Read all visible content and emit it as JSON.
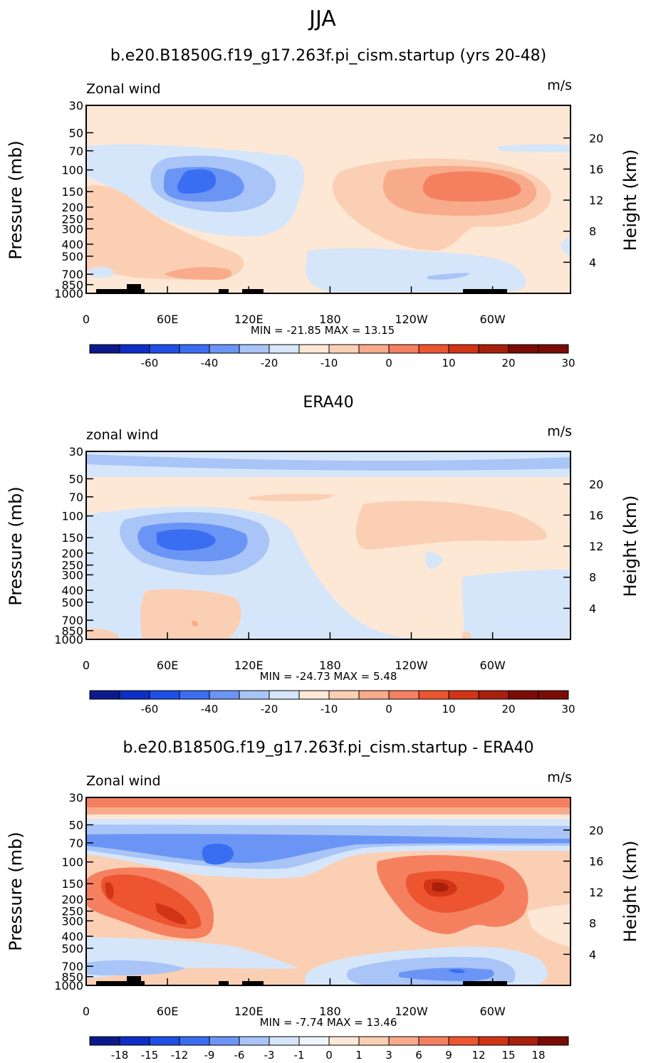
{
  "figure": {
    "title": "JJA"
  },
  "colors": {
    "neg": [
      "#0a1a8c",
      "#0c2fc8",
      "#1f4fe8",
      "#3a6ef2",
      "#6b95f5",
      "#a9c4f7",
      "#d6e6fa"
    ],
    "pos": [
      "#fde8d6",
      "#fbcfb3",
      "#f8ab8a",
      "#f58060",
      "#ec5530",
      "#d23416",
      "#a81f0c",
      "#7a0c05"
    ]
  },
  "chart_data": [
    {
      "type": "heatmap",
      "title": "b.e20.B1850G.f19_g17.263f.pi_cism.startup (yrs 20-48)",
      "left_label": "Zonal wind",
      "units": "m/s",
      "ylabel": "Pressure (mb)",
      "y2label": "Height (km)",
      "x_ticks": [
        "0",
        "60E",
        "120E",
        "180",
        "120W",
        "60W"
      ],
      "x_tick_values": [
        0,
        60,
        120,
        180,
        240,
        300
      ],
      "xlim": [
        0,
        357.5
      ],
      "y_ticks": [
        "30",
        "50",
        "70",
        "100",
        "150",
        "200",
        "250",
        "300",
        "400",
        "500",
        "700",
        "850",
        "1000"
      ],
      "y_tick_values": [
        30,
        50,
        70,
        100,
        150,
        200,
        250,
        300,
        400,
        500,
        700,
        850,
        1000
      ],
      "ylim": [
        1000,
        30
      ],
      "height_ticks": [
        "20",
        "16",
        "12",
        "8",
        "4"
      ],
      "height_values": [
        20,
        16,
        12,
        8,
        4
      ],
      "stats": "MIN = -21.85 MAX = 13.15",
      "colorbar_labels": [
        "-60",
        "-40",
        "-20",
        "-10",
        "0",
        "10",
        "20",
        "30"
      ],
      "colorbar_values": [
        -60,
        -40,
        -20,
        -10,
        0,
        10,
        20,
        30
      ],
      "features": [
        {
          "lon": 88,
          "p": 140,
          "value": -21.85,
          "shape": "jet core"
        },
        {
          "lon": 270,
          "p": 150,
          "value": 13.15,
          "shape": "jet core"
        }
      ]
    },
    {
      "type": "heatmap",
      "title": "ERA40",
      "left_label": "zonal wind",
      "units": "m/s",
      "ylabel": "Pressure (mb)",
      "y2label": "Height (km)",
      "x_ticks": [
        "0",
        "60E",
        "120E",
        "180",
        "120W",
        "60W"
      ],
      "x_tick_values": [
        0,
        60,
        120,
        180,
        240,
        300
      ],
      "xlim": [
        0,
        357.5
      ],
      "y_ticks": [
        "30",
        "50",
        "70",
        "100",
        "150",
        "200",
        "250",
        "300",
        "400",
        "500",
        "700",
        "850",
        "1000"
      ],
      "y_tick_values": [
        30,
        50,
        70,
        100,
        150,
        200,
        250,
        300,
        400,
        500,
        700,
        850,
        1000
      ],
      "ylim": [
        1000,
        30
      ],
      "height_ticks": [
        "20",
        "16",
        "12",
        "8",
        "4"
      ],
      "height_values": [
        20,
        16,
        12,
        8,
        4
      ],
      "stats": "MIN = -24.73 MAX = 5.48",
      "colorbar_labels": [
        "-60",
        "-40",
        "-20",
        "-10",
        "0",
        "10",
        "20",
        "30"
      ],
      "colorbar_values": [
        -60,
        -40,
        -20,
        -10,
        0,
        10,
        20,
        30
      ],
      "features": [
        {
          "lon": 78,
          "p": 150,
          "value": -24.73,
          "shape": "jet core"
        },
        {
          "lon": 250,
          "p": 120,
          "value": 5.48,
          "shape": "max"
        }
      ]
    },
    {
      "type": "heatmap",
      "title": "b.e20.B1850G.f19_g17.263f.pi_cism.startup - ERA40",
      "left_label": "Zonal wind",
      "units": "m/s",
      "ylabel": "Pressure (mb)",
      "y2label": "Height (km)",
      "x_ticks": [
        "0",
        "60E",
        "120E",
        "180",
        "120W",
        "60W"
      ],
      "x_tick_values": [
        0,
        60,
        120,
        180,
        240,
        300
      ],
      "xlim": [
        0,
        357.5
      ],
      "y_ticks": [
        "30",
        "50",
        "70",
        "100",
        "150",
        "200",
        "250",
        "300",
        "400",
        "500",
        "700",
        "850",
        "1000"
      ],
      "y_tick_values": [
        30,
        50,
        70,
        100,
        150,
        200,
        250,
        300,
        400,
        500,
        700,
        850,
        1000
      ],
      "ylim": [
        1000,
        30
      ],
      "height_ticks": [
        "20",
        "16",
        "12",
        "8",
        "4"
      ],
      "height_values": [
        20,
        16,
        12,
        8,
        4
      ],
      "stats": "MIN = -7.74 MAX = 13.46",
      "colorbar_labels": [
        "-18",
        "-15",
        "-12",
        "-9",
        "-6",
        "-3",
        "-1",
        "0",
        "1",
        "3",
        "6",
        "9",
        "12",
        "15",
        "18"
      ],
      "colorbar_values": [
        -18,
        -15,
        -12,
        -9,
        -6,
        -3,
        -1,
        0,
        1,
        3,
        6,
        9,
        12,
        15,
        18
      ],
      "features": [
        {
          "lon": 98,
          "p": 90,
          "value": -7.74,
          "shape": "min"
        },
        {
          "lon": 262,
          "p": 150,
          "value": 13.46,
          "shape": "max"
        }
      ]
    }
  ]
}
